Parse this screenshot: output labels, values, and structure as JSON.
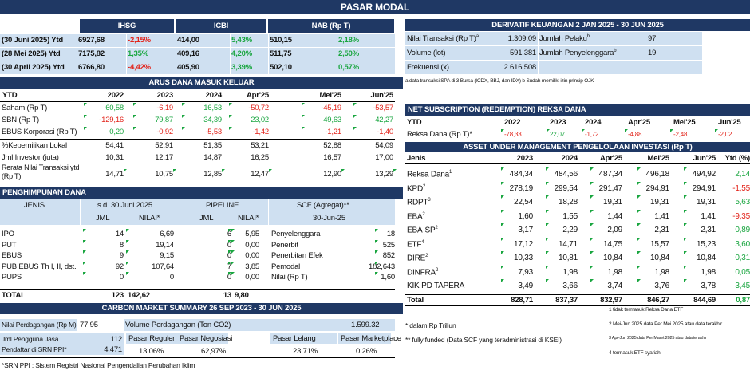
{
  "title": "PASAR MODAL",
  "indices": {
    "headers": [
      "IHSG",
      "ICBI",
      "NAB (Rp T)"
    ],
    "rows": [
      {
        "label": "(30 Juni 2025) Ytd",
        "ihsg": "6927,68",
        "ihsg_ch": "-2,15%",
        "icbi": "414,00",
        "icbi_ch": "5,43%",
        "nab": "510,15",
        "nab_ch": "2,18%"
      },
      {
        "label": "(28 Mei 2025) Ytd",
        "ihsg": "7175,82",
        "ihsg_ch": "1,35%",
        "icbi": "409,16",
        "icbi_ch": "4,20%",
        "nab": "511,75",
        "nab_ch": "2,50%"
      },
      {
        "label": "(30 April 2025) Ytd",
        "ihsg": "6766,80",
        "ihsg_ch": "-4,42%",
        "icbi": "405,90",
        "icbi_ch": "3,39%",
        "nab": "502,10",
        "nab_ch": "0,57%"
      }
    ]
  },
  "arus": {
    "title": "ARUS DANA MASUK KELUAR",
    "headers": [
      "YTD",
      "2022",
      "2023",
      "2024",
      "Apr'25",
      "Mei'25",
      "Jun'25"
    ],
    "rows": [
      {
        "label": "Saham (Rp T)",
        "v": [
          "60,58",
          "-6,19",
          "16,53",
          "-50,72",
          "-45,19",
          "-53,57"
        ],
        "color": [
          "grn",
          "red",
          "grn",
          "red",
          "red",
          "red"
        ]
      },
      {
        "label": "SBN (Rp T)",
        "v": [
          "-129,16",
          "79,87",
          "34,39",
          "23,02",
          "49,63",
          "42,27"
        ],
        "color": [
          "red",
          "grn",
          "grn",
          "grn",
          "grn",
          "grn"
        ]
      },
      {
        "label": "EBUS Korporasi (Rp T)",
        "v": [
          "0,20",
          "-0,92",
          "-5,53",
          "-1,42",
          "-1,21",
          "-1,40"
        ],
        "color": [
          "grn",
          "red",
          "red",
          "red",
          "red",
          "red"
        ]
      },
      {
        "label": "%Kepemilikan Lokal",
        "v": [
          "54,41",
          "52,91",
          "51,35",
          "53,21",
          "52,88",
          "54,09"
        ],
        "color": [
          "",
          "",
          "",
          "",
          "",
          ""
        ]
      },
      {
        "label": "Jml Investor (juta)",
        "v": [
          "10,31",
          "12,17",
          "14,87",
          "16,25",
          "16,57",
          "17,00"
        ],
        "color": [
          "",
          "",
          "",
          "",
          "",
          ""
        ]
      },
      {
        "label": "Rerata Nilai Transaksi ytd (Rp T)",
        "v": [
          "14,71",
          "10,75",
          "12,85",
          "12,47",
          "12,90",
          "13,29"
        ],
        "color": [
          "",
          "",
          "",
          "",
          "",
          ""
        ]
      }
    ]
  },
  "penghimpunan": {
    "title": "PENGHIMPUNAN DANA",
    "h1": [
      "JENIS",
      "s.d. 30 Juni 2025",
      "PIPELINE",
      "SCF (Agregat)**"
    ],
    "h2": [
      "JML",
      "NILAI*",
      "JML",
      "NILAI*",
      "30-Jun-25"
    ],
    "rows": [
      {
        "label": "IPO",
        "jml": "14",
        "nilai": "6,69",
        "pjml": "6",
        "pnilai": "5,95",
        "scf": "Penyelenggara",
        "scfv": "18"
      },
      {
        "label": "PUT",
        "jml": "8",
        "nilai": "19,14",
        "pjml": "0",
        "pnilai": "0,00",
        "scf": "Penerbit",
        "scfv": "525"
      },
      {
        "label": "EBUS",
        "jml": "9",
        "nilai": "9,15",
        "pjml": "0",
        "pnilai": "0,00",
        "scf": "Penerbitan Efek",
        "scfv": "852"
      },
      {
        "label": "PUB EBUS Th I, II, dst.",
        "jml": "92",
        "nilai": "107,64",
        "pjml": "7",
        "pnilai": "3,85",
        "scf": "Pemodal",
        "scfv": "182,643"
      },
      {
        "label": "PUPS",
        "jml": "0",
        "nilai": "0",
        "pjml": "0",
        "pnilai": "0,00",
        "scf": "Nilai (Rp T)",
        "scfv": "1,60"
      }
    ],
    "total": {
      "label": "TOTAL",
      "jml": "123",
      "nilai": "142,62",
      "pjml": "13",
      "pnilai": "9,80"
    }
  },
  "carbon": {
    "title": "CARBON MARKET SUMMARY 26 SEP 2023 - 30 JUN 2025",
    "nilai_label": "Nilai Perdagangan (Rp M)",
    "nilai": "77,95",
    "volume_label": "Volume Perdagangan (Ton CO2)",
    "volume": "1.599.32",
    "jml_label": "Jml Pengguna Jasa",
    "jml": "112",
    "pendaftar_label": "Pendaftar di SRN PPI*",
    "pendaftar": "4,471",
    "markets": [
      {
        "label": "Pasar Reguler",
        "value": "13,06%"
      },
      {
        "label": "Pasar Negosiasi",
        "value": "62,97%"
      },
      {
        "label": "Pasar Lelang",
        "value": "23,71%"
      },
      {
        "label": "Pasar Marketplace",
        "value": "0,26%"
      }
    ],
    "note": "*SRN PPI : Sistem Registri Nasional Pengendalian Perubahan Iklim"
  },
  "derivatif": {
    "title": "DERIVATIF KEUANGAN 2 JAN 2025 - 30 JUN 2025",
    "rows": [
      {
        "label": "Nilai Transaksi (Rp T)",
        "sup": "a",
        "value": "1.309,09",
        "label2": "Jumlah Pelaku",
        "sup2": "b",
        "value2": "97"
      },
      {
        "label": "Volume (lot)",
        "sup": "",
        "value": "591.381",
        "label2": "Jumlah Penyelenggara",
        "sup2": "b",
        "value2": "19"
      },
      {
        "label": "Frekuensi (x)",
        "sup": "",
        "value": "2.616.508",
        "label2": "",
        "sup2": "",
        "value2": ""
      }
    ],
    "note": "a data transaksi SPA di 3 Bursa (ICDX, BBJ, dan IDX)  b Sudah memiliki izin prinsip OJK"
  },
  "netsub": {
    "title": "NET SUBSCRIPTION (REDEMPTION) REKSA DANA",
    "headers": [
      "YTD",
      "2022",
      "2023",
      "2024",
      "Apr'25",
      "Mei'25",
      "Jun'25"
    ],
    "row": {
      "label": "Reksa Dana (Rp T)*",
      "v": [
        "-78,33",
        "22,07",
        "-1,72",
        "-4,88",
        "-2,48",
        "-2,02"
      ],
      "color": [
        "red",
        "grn",
        "red",
        "red",
        "red",
        "red"
      ]
    }
  },
  "aum": {
    "title": "ASSET UNDER MANAGEMENT PENGELOLAAN INVESTASI (Rp T)",
    "headers": [
      "Jenis",
      "2023",
      "2024",
      "Apr'25",
      "Mei'25",
      "Jun'25",
      "Ytd (%)"
    ],
    "rows": [
      {
        "label": "Reksa Dana",
        "sup": "1",
        "v": [
          "484,34",
          "484,56",
          "487,34",
          "496,18",
          "494,92"
        ],
        "ytd": "2,14",
        "yc": "grn"
      },
      {
        "label": "KPD",
        "sup": "2",
        "v": [
          "278,19",
          "299,54",
          "291,47",
          "294,91",
          "294,91"
        ],
        "ytd": "-1,55",
        "yc": "red"
      },
      {
        "label": "RDPT",
        "sup": "3",
        "v": [
          "22,54",
          "18,28",
          "19,31",
          "19,31",
          "19,31"
        ],
        "ytd": "5,63",
        "yc": "grn"
      },
      {
        "label": "EBA",
        "sup": "2",
        "v": [
          "1,60",
          "1,55",
          "1,44",
          "1,41",
          "1,41"
        ],
        "ytd": "-9,35",
        "yc": "red"
      },
      {
        "label": "EBA-SP",
        "sup": "2",
        "v": [
          "3,17",
          "2,29",
          "2,09",
          "2,31",
          "2,31"
        ],
        "ytd": "0,89",
        "yc": "grn"
      },
      {
        "label": "ETF",
        "sup": "4",
        "v": [
          "17,12",
          "14,71",
          "14,75",
          "15,57",
          "15,23"
        ],
        "ytd": "3,60",
        "yc": "grn"
      },
      {
        "label": "DIRE",
        "sup": "2",
        "v": [
          "10,33",
          "10,81",
          "10,84",
          "10,84",
          "10,84"
        ],
        "ytd": "0,31",
        "yc": "grn"
      },
      {
        "label": "DINFRA",
        "sup": "2",
        "v": [
          "7,93",
          "1,98",
          "1,98",
          "1,98",
          "1,98"
        ],
        "ytd": "0,05",
        "yc": "grn"
      },
      {
        "label": "KIK PD TAPERA",
        "sup": "",
        "v": [
          "3,49",
          "3,66",
          "3,74",
          "3,76",
          "3,78"
        ],
        "ytd": "3,45",
        "yc": "grn"
      }
    ],
    "total": {
      "label": "Total",
      "v": [
        "828,71",
        "837,37",
        "832,97",
        "846,27",
        "844,69"
      ],
      "ytd": "0,87"
    }
  },
  "footnotes": {
    "left": [
      "* dalam Rp Triliun",
      "** fully funded (Data SCF yang teradministrasi di KSEI)"
    ],
    "right": [
      "1 tidak termasuk Reksa Dana ETF",
      "2 Mei-Jun 2025 data Per Mei 2025 atau data terakhir",
      "3 Apr-Jun 2025 data Per Maret 2025 atau data terakhir",
      "4 termasuk ETF syariah"
    ]
  }
}
